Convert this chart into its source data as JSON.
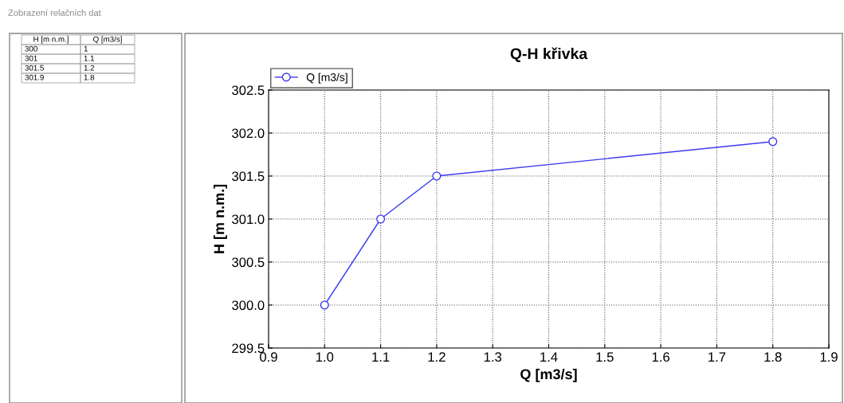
{
  "chart_data": {
    "type": "line",
    "title": "Q-H křivka",
    "xlabel": "Q [m3/s]",
    "ylabel": "H [m n.m.]",
    "annotations": [
      "Zobrazení relačních dat",
      "300",
      "1",
      "301",
      "1.1",
      "301.5",
      "1.2",
      "301.9",
      "1.8"
    ],
    "x": [
      1.0,
      1.1,
      1.2,
      1.8
    ],
    "series": [
      {
        "name": "Q [m3/s]",
        "color": "#3c3cf0",
        "values": [
          300.0,
          301.0,
          301.5,
          301.9
        ]
      }
    ],
    "xlim": [
      0.9,
      1.9
    ],
    "xticks": [
      0.9,
      {
        "value": 1,
        "label": "1.0"
      },
      1.1,
      1.2,
      1.3,
      1.4,
      1.5,
      1.6,
      1.7,
      1.8,
      1.9
    ],
    "ylim": [
      299.5,
      302.5
    ],
    "yticks": [
      299.5,
      {
        "value": 300,
        "label": "300.0"
      },
      300.5,
      {
        "value": 301,
        "label": "301.0"
      },
      301.5,
      {
        "value": 302,
        "label": "302.0"
      },
      302.5
    ],
    "grid": true,
    "legend": "top left",
    "marker": "circle",
    "line_style": "solid"
  }
}
